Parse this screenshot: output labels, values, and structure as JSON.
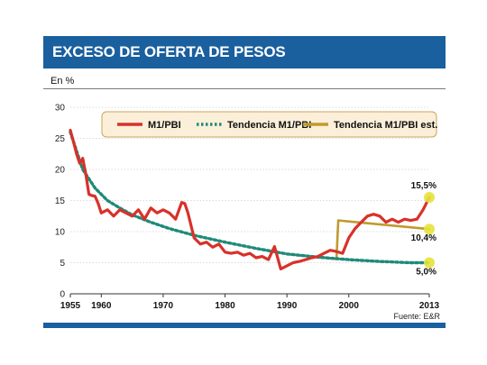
{
  "header": {
    "title": "EXCESO DE OFERTA DE PESOS",
    "unit_label": "En %"
  },
  "source": "Fuente: E&R",
  "colors": {
    "banner": "#1a5f9e",
    "m1": "#d8312a",
    "trend": "#1f8a78",
    "est": "#c19a2e",
    "marker": "#e6e23a",
    "legend_bg": "#fbefd9"
  },
  "chart_data": {
    "type": "line",
    "ylim": [
      0,
      30
    ],
    "xlim": [
      1955,
      2013
    ],
    "yticks": [
      "0",
      "5",
      "10",
      "15",
      "20",
      "25",
      "30"
    ],
    "xticks": [
      "1955",
      "1960",
      "1970",
      "1980",
      "1990",
      "2000",
      "2013"
    ],
    "grid": true,
    "legend_position": "top",
    "series": [
      {
        "name": "M1/PBI",
        "style": "solid",
        "x": [
          1955,
          1955.5,
          1956,
          1956.5,
          1957,
          1957.5,
          1958,
          1958.5,
          1959,
          1959.5,
          1960,
          1961,
          1962,
          1963,
          1964,
          1965,
          1966,
          1967,
          1968,
          1969,
          1970,
          1971,
          1972,
          1973,
          1973.5,
          1974,
          1975,
          1976,
          1977,
          1978,
          1979,
          1980,
          1981,
          1982,
          1983,
          1984,
          1985,
          1986,
          1987,
          1988,
          1989,
          1990,
          1991,
          1992,
          1993,
          1994,
          1995,
          1996,
          1997,
          1998,
          1999,
          2000,
          2001,
          2002,
          2003,
          2004,
          2005,
          2006,
          2007,
          2008,
          2009,
          2010,
          2011,
          2012,
          2013
        ],
        "values": [
          26.3,
          24.5,
          22.5,
          21.0,
          21.8,
          19.2,
          16.0,
          15.8,
          15.7,
          14.5,
          13.0,
          13.5,
          12.5,
          13.5,
          13.0,
          12.5,
          13.5,
          12.0,
          13.8,
          13.0,
          13.5,
          13.0,
          12.0,
          14.7,
          14.5,
          13.0,
          9.0,
          8.0,
          8.3,
          7.5,
          8.0,
          6.7,
          6.5,
          6.7,
          6.2,
          6.5,
          5.8,
          6.0,
          5.5,
          7.6,
          4.0,
          4.5,
          5.0,
          5.2,
          5.5,
          5.8,
          6.0,
          6.5,
          7.0,
          6.8,
          6.5,
          9.0,
          10.5,
          11.5,
          12.5,
          12.8,
          12.5,
          11.5,
          12.0,
          11.5,
          12.0,
          11.8,
          12.0,
          13.5,
          15.5
        ]
      },
      {
        "name": "Tendencia M1/PBI",
        "style": "dotted",
        "x": [
          1955,
          1957,
          1959,
          1961,
          1963,
          1965,
          1968,
          1971,
          1975,
          1980,
          1985,
          1990,
          1995,
          2000,
          2005,
          2010,
          2013
        ],
        "values": [
          26.0,
          20.0,
          17.0,
          15.0,
          13.8,
          12.7,
          11.5,
          10.5,
          9.4,
          8.3,
          7.3,
          6.4,
          5.9,
          5.5,
          5.2,
          5.0,
          5.0
        ]
      },
      {
        "name": "Tendencia M1/PBI est.",
        "style": "solid",
        "x": [
          1990,
          1995,
          1998,
          1998.3,
          2013
        ],
        "values": [
          6.4,
          5.9,
          5.6,
          11.8,
          10.4
        ]
      }
    ],
    "annotations": [
      {
        "label": "15,5%",
        "x": 2013,
        "y": 15.5
      },
      {
        "label": "10,4%",
        "x": 2013,
        "y": 10.4
      },
      {
        "label": "5,0%",
        "x": 2013,
        "y": 5.0
      }
    ]
  }
}
